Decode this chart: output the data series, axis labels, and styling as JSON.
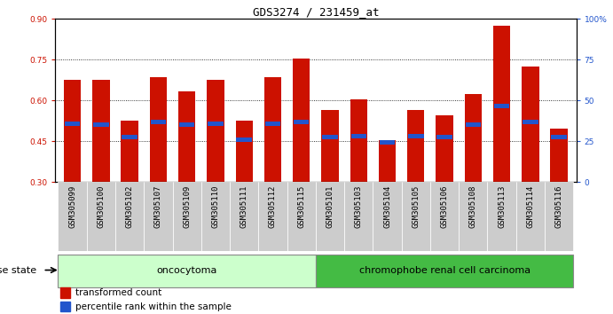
{
  "title": "GDS3274 / 231459_at",
  "samples": [
    "GSM305099",
    "GSM305100",
    "GSM305102",
    "GSM305107",
    "GSM305109",
    "GSM305110",
    "GSM305111",
    "GSM305112",
    "GSM305115",
    "GSM305101",
    "GSM305103",
    "GSM305104",
    "GSM305105",
    "GSM305106",
    "GSM305108",
    "GSM305113",
    "GSM305114",
    "GSM305116"
  ],
  "red_values": [
    0.675,
    0.675,
    0.525,
    0.685,
    0.635,
    0.675,
    0.525,
    0.685,
    0.755,
    0.565,
    0.605,
    0.455,
    0.565,
    0.545,
    0.625,
    0.875,
    0.725,
    0.495
  ],
  "blue_values": [
    0.515,
    0.51,
    0.465,
    0.52,
    0.51,
    0.515,
    0.455,
    0.515,
    0.52,
    0.465,
    0.47,
    0.445,
    0.47,
    0.465,
    0.51,
    0.58,
    0.52,
    0.465
  ],
  "bar_bottom": 0.3,
  "ylim_left": [
    0.3,
    0.9
  ],
  "ylim_right": [
    0,
    100
  ],
  "yticks_left": [
    0.3,
    0.45,
    0.6,
    0.75,
    0.9
  ],
  "yticks_right": [
    0,
    25,
    50,
    75,
    100
  ],
  "bar_color": "#cc1100",
  "blue_color": "#2255cc",
  "oncocytoma_count": 9,
  "chromophobe_count": 9,
  "oncocytoma_label": "oncocytoma",
  "chromophobe_label": "chromophobe renal cell carcinoma",
  "group_bg_light": "#ccffcc",
  "group_bg_dark": "#44bb44",
  "xlabel_disease": "disease state",
  "legend_red": "transformed count",
  "legend_blue": "percentile rank within the sample",
  "bar_width": 0.6,
  "title_fontsize": 9,
  "tick_fontsize": 6.5,
  "label_fontsize": 8
}
